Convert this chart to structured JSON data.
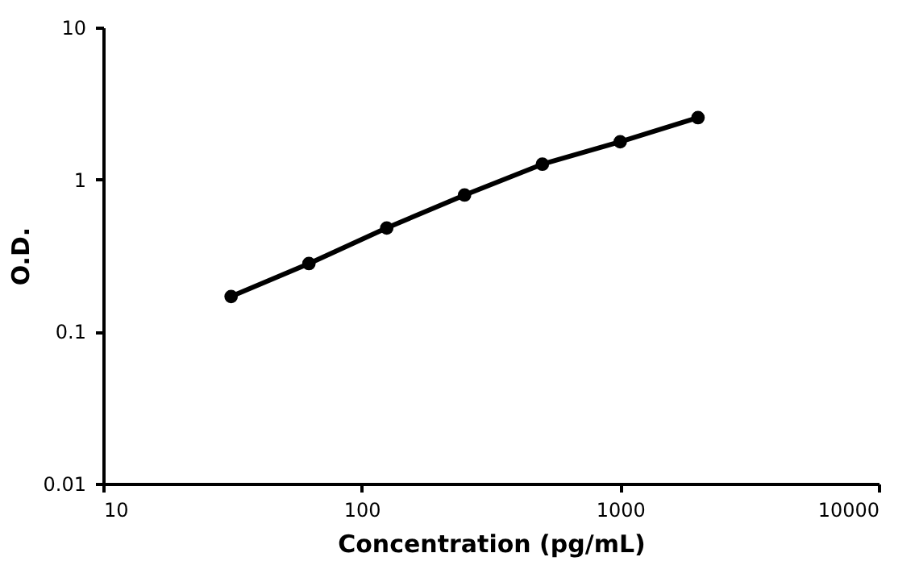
{
  "chart_data": {
    "type": "line",
    "xlabel": "Concentration (pg/mL)",
    "ylabel": "O.D.",
    "x": [
      31.25,
      62.5,
      125,
      250,
      500,
      1000,
      2000
    ],
    "series": [
      {
        "color": "#000000",
        "values": [
          0.17,
          0.28,
          0.48,
          0.79,
          1.26,
          1.77,
          2.55
        ]
      }
    ],
    "log": "xy",
    "xlim": [
      10,
      10000
    ],
    "xticks": [
      10,
      100,
      1000,
      10000
    ],
    "ylim": [
      0.01,
      10
    ],
    "yticks": [
      0.01,
      0.1,
      1,
      10
    ],
    "grid": false,
    "marker": "circle",
    "line_style": "solid"
  }
}
